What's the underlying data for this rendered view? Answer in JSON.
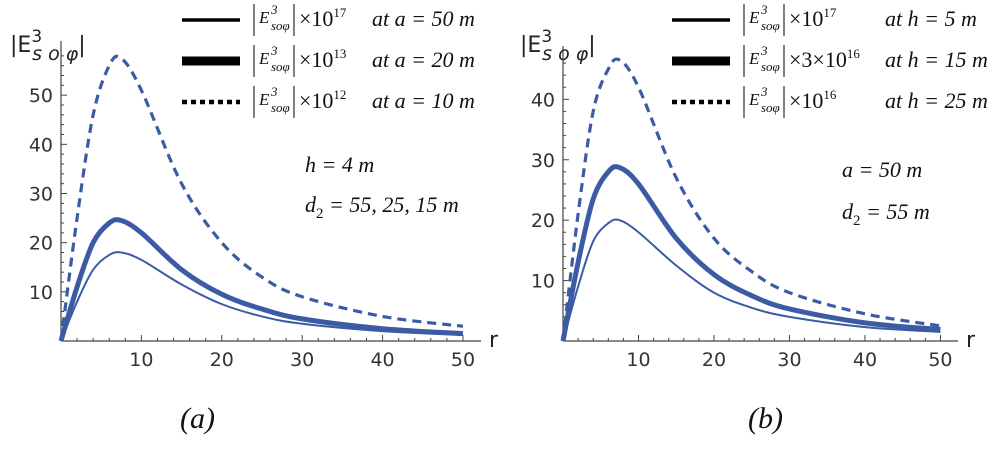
{
  "chart_data": [
    {
      "type": "line",
      "panel_label": "(a)",
      "ylabel": "|E^3_soφ|",
      "xlabel": "r",
      "xlim": [
        0,
        51
      ],
      "ylim": [
        0,
        60
      ],
      "xticks": [
        10,
        20,
        30,
        40,
        50
      ],
      "yticks": [
        10,
        20,
        30,
        40,
        50
      ],
      "annotations": [
        "h = 4 m",
        "d_2 = 55, 25, 15 m"
      ],
      "legend_position": "top",
      "series": [
        {
          "name": "|E^3_soφ| ×10^17 at a = 50 m",
          "style": "thin",
          "x": [
            0,
            2,
            4,
            6,
            7.5,
            10,
            15,
            20,
            25,
            30,
            40,
            50
          ],
          "y": [
            0,
            8,
            14.5,
            17.5,
            18,
            16.5,
            11.5,
            7.5,
            5,
            3.5,
            2,
            1.2
          ]
        },
        {
          "name": "|E^3_soφ| ×10^13 at a = 20 m",
          "style": "thick",
          "x": [
            0,
            2,
            4,
            6,
            7.5,
            10,
            15,
            20,
            25,
            30,
            40,
            50
          ],
          "y": [
            0,
            11,
            20,
            24,
            24.5,
            22,
            14.5,
            9.5,
            6.5,
            4.5,
            2.5,
            1.5
          ]
        },
        {
          "name": "|E^3_soφ| ×10^12 at a = 10 m",
          "style": "dashed",
          "x": [
            0,
            2,
            4,
            6,
            7.5,
            10,
            15,
            20,
            25,
            30,
            40,
            50
          ],
          "y": [
            0,
            25,
            46,
            56,
            57.5,
            51,
            32,
            20,
            13,
            9,
            5,
            3
          ]
        }
      ]
    },
    {
      "type": "line",
      "panel_label": "(b)",
      "ylabel": "|E^3_soφ|",
      "xlabel": "r",
      "xlim": [
        0,
        51
      ],
      "ylim": [
        0,
        48
      ],
      "xticks": [
        10,
        20,
        30,
        40,
        50
      ],
      "yticks": [
        10,
        20,
        30,
        40
      ],
      "annotations": [
        "a = 50 m",
        "d_2 = 55 m"
      ],
      "legend_position": "top",
      "series": [
        {
          "name": "|E^3_soφ| ×10^17 at h = 5 m",
          "style": "thin",
          "x": [
            0,
            2,
            4,
            6,
            7.5,
            10,
            15,
            20,
            25,
            30,
            40,
            50
          ],
          "y": [
            0,
            9,
            16.5,
            19.5,
            20,
            18,
            12.5,
            8,
            5.5,
            4,
            2.3,
            1.5
          ]
        },
        {
          "name": "|E^3_soφ| ×3×10^16 at h = 15 m",
          "style": "thick",
          "x": [
            0,
            2,
            4,
            6,
            7.5,
            10,
            15,
            20,
            25,
            30,
            40,
            50
          ],
          "y": [
            0,
            13,
            23.5,
            28,
            28.7,
            26,
            17,
            11,
            7.5,
            5.3,
            3,
            1.9
          ]
        },
        {
          "name": "|E^3_soφ| ×10^16 at h = 25 m",
          "style": "dashed",
          "x": [
            0,
            2,
            4,
            6,
            7.5,
            10,
            15,
            20,
            25,
            30,
            40,
            50
          ],
          "y": [
            0,
            21,
            38,
            45,
            46.5,
            42,
            27,
            17,
            11.5,
            8,
            4.5,
            2.5
          ]
        }
      ]
    }
  ],
  "legend_a": [
    {
      "pre": "×10",
      "exp": "17",
      "cond": "at  a = 50 m"
    },
    {
      "pre": "×10",
      "exp": "13",
      "cond": "at  a = 20 m"
    },
    {
      "pre": "×10",
      "exp": "12",
      "cond": "at  a = 10 m"
    }
  ],
  "legend_b": [
    {
      "pre": "×10",
      "exp": "17",
      "cond": "at  h = 5 m"
    },
    {
      "pre": "×3×10",
      "exp": "16",
      "cond": "at  h = 15 m"
    },
    {
      "pre": "×10",
      "exp": "16",
      "cond": "at  h = 25 m"
    }
  ],
  "colors": {
    "curve": "#3b5ba5",
    "axis": "#444444"
  }
}
